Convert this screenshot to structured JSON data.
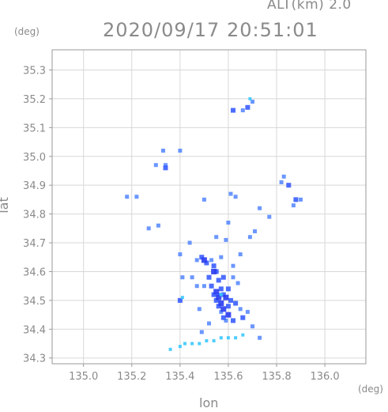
{
  "header": {
    "altitude_label": "ALT(km)  2.0",
    "timestamp": "2020/09/17 20:51:01"
  },
  "axes": {
    "y_unit": "(deg)",
    "x_unit": "(deg)",
    "x_title": "lon",
    "y_title": "lat"
  },
  "colors": {
    "axis": "#999999",
    "grid": "#d8d8d8",
    "echo_light": "#5b8cff",
    "echo_mid": "#3a5dff",
    "echo_strong": "#2a3cf0",
    "echo_cyan": "#38c8ff"
  },
  "chart_data": {
    "type": "scatter",
    "title": "2020/09/17 20:51:01",
    "xlabel": "lon",
    "ylabel": "lat",
    "xlim": [
      134.87,
      136.17
    ],
    "ylim": [
      34.28,
      35.37
    ],
    "grid": true,
    "x_ticks": [
      135.0,
      135.2,
      135.4,
      135.6,
      135.8,
      136.0
    ],
    "x_tick_labels": [
      "135.0",
      "135.2",
      "135.4",
      "135.6",
      "135.8",
      "136.0"
    ],
    "y_ticks": [
      34.3,
      34.4,
      34.5,
      34.6,
      34.7,
      34.8,
      34.9,
      35.0,
      35.1,
      35.2,
      35.3
    ],
    "y_tick_labels": [
      "34.3",
      "34.4",
      "34.5",
      "34.6",
      "34.7",
      "34.8",
      "34.9",
      "35.0",
      "35.1",
      "35.2",
      "35.3"
    ],
    "series": [
      {
        "level": "weak",
        "color": "#5b8cff",
        "points": [
          [
            135.33,
            35.02
          ],
          [
            135.4,
            35.02
          ],
          [
            135.3,
            34.97
          ],
          [
            135.34,
            34.97
          ],
          [
            135.18,
            34.86
          ],
          [
            135.22,
            34.86
          ],
          [
            135.5,
            34.85
          ],
          [
            135.61,
            34.87
          ],
          [
            135.63,
            34.86
          ],
          [
            135.6,
            34.77
          ],
          [
            135.73,
            34.82
          ],
          [
            135.77,
            34.79
          ],
          [
            135.87,
            34.83
          ],
          [
            135.9,
            34.85
          ],
          [
            135.82,
            34.91
          ],
          [
            135.83,
            34.93
          ],
          [
            135.31,
            34.76
          ],
          [
            135.27,
            34.75
          ],
          [
            135.71,
            34.74
          ],
          [
            135.69,
            34.72
          ],
          [
            135.44,
            34.7
          ],
          [
            135.55,
            34.72
          ],
          [
            135.59,
            34.71
          ],
          [
            135.4,
            34.66
          ],
          [
            135.47,
            34.64
          ],
          [
            135.53,
            34.64
          ],
          [
            135.57,
            34.65
          ],
          [
            135.62,
            34.62
          ],
          [
            135.65,
            34.66
          ],
          [
            135.41,
            34.58
          ],
          [
            135.45,
            34.58
          ],
          [
            135.62,
            34.58
          ],
          [
            135.64,
            34.56
          ],
          [
            135.47,
            34.55
          ],
          [
            135.5,
            34.55
          ],
          [
            135.56,
            34.52
          ],
          [
            135.48,
            34.47
          ],
          [
            135.57,
            34.46
          ],
          [
            135.65,
            34.47
          ],
          [
            135.68,
            34.46
          ],
          [
            135.52,
            34.42
          ],
          [
            135.59,
            34.43
          ],
          [
            135.7,
            34.41
          ],
          [
            135.49,
            34.39
          ],
          [
            135.73,
            34.37
          ],
          [
            135.66,
            35.16
          ],
          [
            135.7,
            35.19
          ]
        ]
      },
      {
        "level": "moderate",
        "color": "#3a5dff",
        "points": [
          [
            135.49,
            34.65
          ],
          [
            135.51,
            34.63
          ],
          [
            135.54,
            34.62
          ],
          [
            135.55,
            34.6
          ],
          [
            135.52,
            34.58
          ],
          [
            135.56,
            34.57
          ],
          [
            135.58,
            34.58
          ],
          [
            135.53,
            34.55
          ],
          [
            135.57,
            34.54
          ],
          [
            135.6,
            34.54
          ],
          [
            135.54,
            34.52
          ],
          [
            135.58,
            34.52
          ],
          [
            135.55,
            34.5
          ],
          [
            135.61,
            34.5
          ],
          [
            135.56,
            34.48
          ],
          [
            135.6,
            34.48
          ],
          [
            135.63,
            34.49
          ],
          [
            135.58,
            34.44
          ],
          [
            135.62,
            34.43
          ],
          [
            135.66,
            34.44
          ],
          [
            135.85,
            34.9
          ],
          [
            135.88,
            34.85
          ],
          [
            135.34,
            34.96
          ],
          [
            135.68,
            35.17
          ],
          [
            135.62,
            35.16
          ],
          [
            135.4,
            34.5
          ]
        ]
      },
      {
        "level": "strong",
        "color": "#2a3cf0",
        "points": [
          [
            135.56,
            34.51
          ],
          [
            135.57,
            34.49
          ],
          [
            135.59,
            34.51
          ],
          [
            135.55,
            34.53
          ],
          [
            135.58,
            34.47
          ],
          [
            135.6,
            34.45
          ],
          [
            135.54,
            34.6
          ],
          [
            135.5,
            34.64
          ]
        ]
      },
      {
        "level": "cyan",
        "color": "#38c8ff",
        "points": [
          [
            135.36,
            34.33
          ],
          [
            135.4,
            34.34
          ],
          [
            135.42,
            34.35
          ],
          [
            135.45,
            34.35
          ],
          [
            135.48,
            34.35
          ],
          [
            135.51,
            34.36
          ],
          [
            135.54,
            34.36
          ],
          [
            135.57,
            34.37
          ],
          [
            135.6,
            34.37
          ],
          [
            135.63,
            34.37
          ],
          [
            135.66,
            34.38
          ],
          [
            135.57,
            34.52
          ],
          [
            135.69,
            35.2
          ],
          [
            135.41,
            34.51
          ]
        ]
      }
    ]
  }
}
